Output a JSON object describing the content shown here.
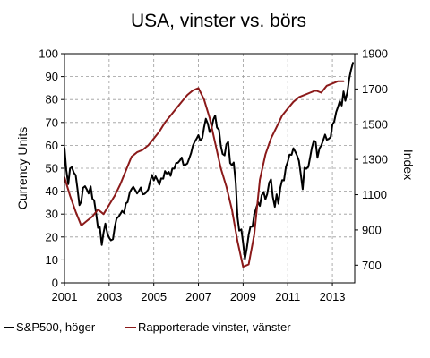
{
  "chart_data": {
    "type": "line",
    "title": "USA, vinster vs. börs",
    "x_ticks": [
      "2001",
      "2003",
      "2005",
      "2007",
      "2009",
      "2011",
      "2013"
    ],
    "xlim": [
      2001,
      2014
    ],
    "grid": true,
    "legend_position": "bottom",
    "left_axis": {
      "label": "Currency Units",
      "range": [
        0,
        100
      ],
      "ticks": [
        "0",
        "10",
        "20",
        "30",
        "40",
        "50",
        "60",
        "70",
        "80",
        "90",
        "100"
      ]
    },
    "right_axis": {
      "label": "Index",
      "range": [
        600,
        1900
      ],
      "ticks": [
        "700",
        "900",
        "1100",
        "1300",
        "1500",
        "1700",
        "1900"
      ]
    },
    "series": [
      {
        "name": "S&P500, höger",
        "axis": "right",
        "color": "#000000",
        "points": [
          [
            2001.0,
            1366
          ],
          [
            2001.08,
            1240
          ],
          [
            2001.17,
            1160
          ],
          [
            2001.25,
            1249
          ],
          [
            2001.33,
            1256
          ],
          [
            2001.42,
            1224
          ],
          [
            2001.5,
            1211
          ],
          [
            2001.58,
            1133
          ],
          [
            2001.67,
            1041
          ],
          [
            2001.75,
            1060
          ],
          [
            2001.83,
            1139
          ],
          [
            2001.92,
            1148
          ],
          [
            2002.0,
            1130
          ],
          [
            2002.08,
            1107
          ],
          [
            2002.17,
            1147
          ],
          [
            2002.25,
            1077
          ],
          [
            2002.33,
            1067
          ],
          [
            2002.42,
            990
          ],
          [
            2002.5,
            912
          ],
          [
            2002.58,
            916
          ],
          [
            2002.67,
            815
          ],
          [
            2002.75,
            885
          ],
          [
            2002.83,
            936
          ],
          [
            2002.92,
            880
          ],
          [
            2003.0,
            856
          ],
          [
            2003.08,
            841
          ],
          [
            2003.17,
            848
          ],
          [
            2003.25,
            916
          ],
          [
            2003.33,
            964
          ],
          [
            2003.42,
            975
          ],
          [
            2003.5,
            990
          ],
          [
            2003.58,
            1008
          ],
          [
            2003.67,
            996
          ],
          [
            2003.75,
            1050
          ],
          [
            2003.83,
            1058
          ],
          [
            2003.92,
            1112
          ],
          [
            2004.0,
            1131
          ],
          [
            2004.08,
            1145
          ],
          [
            2004.17,
            1126
          ],
          [
            2004.25,
            1107
          ],
          [
            2004.33,
            1121
          ],
          [
            2004.42,
            1141
          ],
          [
            2004.5,
            1102
          ],
          [
            2004.58,
            1104
          ],
          [
            2004.67,
            1115
          ],
          [
            2004.75,
            1130
          ],
          [
            2004.83,
            1174
          ],
          [
            2004.92,
            1212
          ],
          [
            2005.0,
            1181
          ],
          [
            2005.08,
            1204
          ],
          [
            2005.17,
            1181
          ],
          [
            2005.25,
            1157
          ],
          [
            2005.33,
            1192
          ],
          [
            2005.42,
            1191
          ],
          [
            2005.5,
            1234
          ],
          [
            2005.58,
            1220
          ],
          [
            2005.67,
            1229
          ],
          [
            2005.75,
            1207
          ],
          [
            2005.83,
            1249
          ],
          [
            2005.92,
            1248
          ],
          [
            2006.0,
            1280
          ],
          [
            2006.08,
            1281
          ],
          [
            2006.17,
            1295
          ],
          [
            2006.25,
            1311
          ],
          [
            2006.33,
            1270
          ],
          [
            2006.42,
            1270
          ],
          [
            2006.5,
            1277
          ],
          [
            2006.58,
            1304
          ],
          [
            2006.67,
            1336
          ],
          [
            2006.75,
            1378
          ],
          [
            2006.83,
            1400
          ],
          [
            2006.92,
            1418
          ],
          [
            2007.0,
            1438
          ],
          [
            2007.08,
            1407
          ],
          [
            2007.17,
            1421
          ],
          [
            2007.25,
            1482
          ],
          [
            2007.33,
            1531
          ],
          [
            2007.42,
            1503
          ],
          [
            2007.5,
            1455
          ],
          [
            2007.58,
            1474
          ],
          [
            2007.67,
            1527
          ],
          [
            2007.75,
            1549
          ],
          [
            2007.83,
            1481
          ],
          [
            2007.92,
            1468
          ],
          [
            2008.0,
            1378
          ],
          [
            2008.08,
            1331
          ],
          [
            2008.17,
            1323
          ],
          [
            2008.25,
            1386
          ],
          [
            2008.33,
            1400
          ],
          [
            2008.42,
            1280
          ],
          [
            2008.5,
            1267
          ],
          [
            2008.58,
            1283
          ],
          [
            2008.67,
            1165
          ],
          [
            2008.75,
            969
          ],
          [
            2008.83,
            896
          ],
          [
            2008.92,
            903
          ],
          [
            2009.0,
            826
          ],
          [
            2009.08,
            735
          ],
          [
            2009.17,
            798
          ],
          [
            2009.25,
            873
          ],
          [
            2009.33,
            919
          ],
          [
            2009.42,
            919
          ],
          [
            2009.5,
            987
          ],
          [
            2009.58,
            1021
          ],
          [
            2009.67,
            1057
          ],
          [
            2009.75,
            1036
          ],
          [
            2009.83,
            1096
          ],
          [
            2009.92,
            1115
          ],
          [
            2010.0,
            1074
          ],
          [
            2010.08,
            1104
          ],
          [
            2010.17,
            1169
          ],
          [
            2010.25,
            1187
          ],
          [
            2010.33,
            1089
          ],
          [
            2010.42,
            1031
          ],
          [
            2010.5,
            1102
          ],
          [
            2010.58,
            1049
          ],
          [
            2010.67,
            1141
          ],
          [
            2010.75,
            1183
          ],
          [
            2010.83,
            1181
          ],
          [
            2010.92,
            1258
          ],
          [
            2011.0,
            1286
          ],
          [
            2011.08,
            1327
          ],
          [
            2011.17,
            1326
          ],
          [
            2011.25,
            1364
          ],
          [
            2011.33,
            1345
          ],
          [
            2011.42,
            1321
          ],
          [
            2011.5,
            1292
          ],
          [
            2011.58,
            1219
          ],
          [
            2011.67,
            1131
          ],
          [
            2011.75,
            1253
          ],
          [
            2011.83,
            1247
          ],
          [
            2011.92,
            1258
          ],
          [
            2012.0,
            1312
          ],
          [
            2012.08,
            1366
          ],
          [
            2012.17,
            1408
          ],
          [
            2012.25,
            1398
          ],
          [
            2012.33,
            1310
          ],
          [
            2012.42,
            1362
          ],
          [
            2012.5,
            1379
          ],
          [
            2012.58,
            1406
          ],
          [
            2012.67,
            1441
          ],
          [
            2012.75,
            1412
          ],
          [
            2012.83,
            1416
          ],
          [
            2012.92,
            1426
          ],
          [
            2013.0,
            1498
          ],
          [
            2013.08,
            1515
          ],
          [
            2013.17,
            1569
          ],
          [
            2013.25,
            1598
          ],
          [
            2013.33,
            1631
          ],
          [
            2013.42,
            1606
          ],
          [
            2013.5,
            1686
          ],
          [
            2013.58,
            1633
          ],
          [
            2013.67,
            1682
          ],
          [
            2013.75,
            1757
          ],
          [
            2013.83,
            1806
          ],
          [
            2013.92,
            1848
          ]
        ]
      },
      {
        "name": "Rapporterade vinster, vänster",
        "axis": "left",
        "color": "#8b1a1a",
        "points": [
          [
            2001.0,
            46
          ],
          [
            2001.25,
            38
          ],
          [
            2001.5,
            31
          ],
          [
            2001.75,
            25
          ],
          [
            2002.0,
            27
          ],
          [
            2002.25,
            29
          ],
          [
            2002.5,
            32
          ],
          [
            2002.75,
            30
          ],
          [
            2003.0,
            34
          ],
          [
            2003.25,
            38
          ],
          [
            2003.5,
            43
          ],
          [
            2003.75,
            49
          ],
          [
            2004.0,
            55
          ],
          [
            2004.25,
            57
          ],
          [
            2004.5,
            58
          ],
          [
            2004.75,
            60
          ],
          [
            2005.0,
            63
          ],
          [
            2005.25,
            66
          ],
          [
            2005.5,
            70
          ],
          [
            2005.75,
            73
          ],
          [
            2006.0,
            76
          ],
          [
            2006.25,
            79
          ],
          [
            2006.5,
            82
          ],
          [
            2006.75,
            84
          ],
          [
            2007.0,
            85
          ],
          [
            2007.25,
            80
          ],
          [
            2007.5,
            72
          ],
          [
            2007.75,
            61
          ],
          [
            2008.0,
            50
          ],
          [
            2008.25,
            42
          ],
          [
            2008.5,
            32
          ],
          [
            2008.75,
            18
          ],
          [
            2009.0,
            7
          ],
          [
            2009.25,
            8
          ],
          [
            2009.5,
            21
          ],
          [
            2009.75,
            45
          ],
          [
            2010.0,
            56
          ],
          [
            2010.25,
            63
          ],
          [
            2010.5,
            68
          ],
          [
            2010.75,
            73
          ],
          [
            2011.0,
            76
          ],
          [
            2011.25,
            79
          ],
          [
            2011.5,
            81
          ],
          [
            2011.75,
            82
          ],
          [
            2012.0,
            83
          ],
          [
            2012.25,
            84
          ],
          [
            2012.5,
            83
          ],
          [
            2012.75,
            86
          ],
          [
            2013.0,
            87
          ],
          [
            2013.25,
            88
          ],
          [
            2013.5,
            88
          ]
        ]
      }
    ]
  }
}
